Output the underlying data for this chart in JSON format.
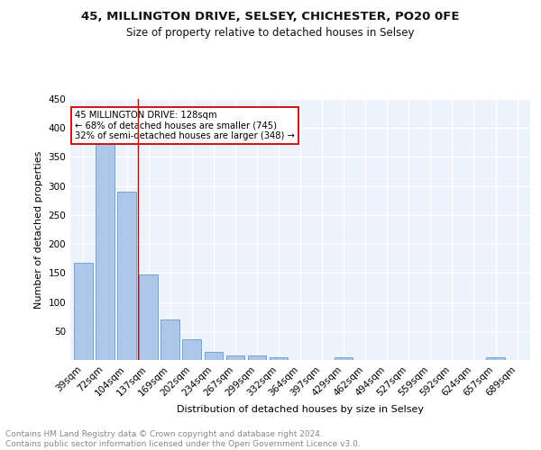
{
  "title1": "45, MILLINGTON DRIVE, SELSEY, CHICHESTER, PO20 0FE",
  "title2": "Size of property relative to detached houses in Selsey",
  "xlabel": "Distribution of detached houses by size in Selsey",
  "ylabel": "Number of detached properties",
  "categories": [
    "39sqm",
    "72sqm",
    "104sqm",
    "137sqm",
    "169sqm",
    "202sqm",
    "234sqm",
    "267sqm",
    "299sqm",
    "332sqm",
    "364sqm",
    "397sqm",
    "429sqm",
    "462sqm",
    "494sqm",
    "527sqm",
    "559sqm",
    "592sqm",
    "624sqm",
    "657sqm",
    "689sqm"
  ],
  "values": [
    168,
    375,
    290,
    148,
    70,
    35,
    14,
    8,
    8,
    4,
    0,
    0,
    4,
    0,
    0,
    0,
    0,
    0,
    0,
    4,
    0
  ],
  "bar_color": "#aec6e8",
  "bar_edge_color": "#5a9fd4",
  "vline_x": 2.5,
  "vline_color": "#cc0000",
  "annotation_text": "45 MILLINGTON DRIVE: 128sqm\n← 68% of detached houses are smaller (745)\n32% of semi-detached houses are larger (348) →",
  "annotation_box_color": "#ffffff",
  "annotation_box_edge": "#cc0000",
  "ylim": [
    0,
    450
  ],
  "yticks": [
    0,
    50,
    100,
    150,
    200,
    250,
    300,
    350,
    400,
    450
  ],
  "bg_color": "#eef2fb",
  "footer": "Contains HM Land Registry data © Crown copyright and database right 2024.\nContains public sector information licensed under the Open Government Licence v3.0.",
  "title1_fontsize": 9.5,
  "title2_fontsize": 8.5,
  "xlabel_fontsize": 8,
  "ylabel_fontsize": 8,
  "tick_fontsize": 7.5,
  "footer_fontsize": 6.5
}
